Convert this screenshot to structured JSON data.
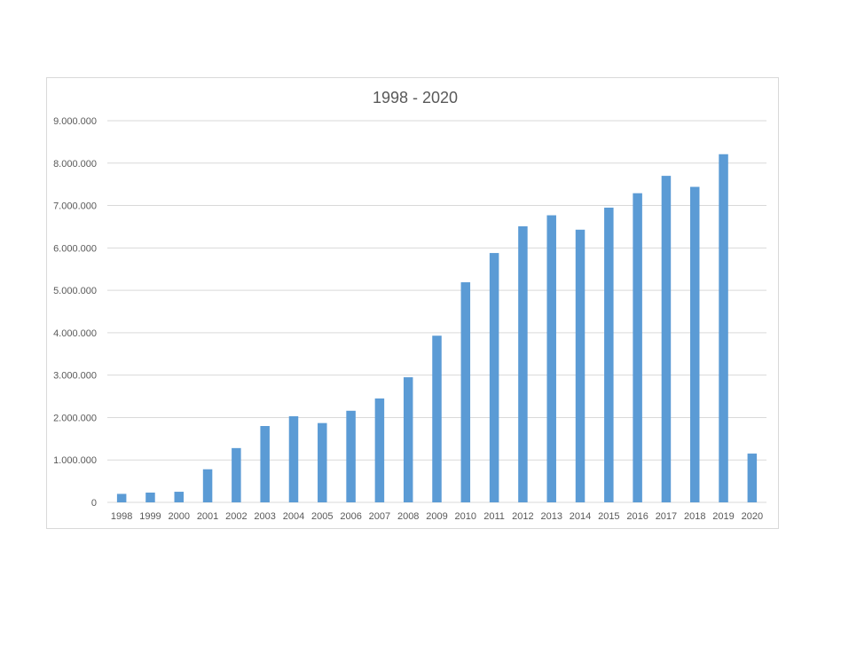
{
  "chart_data": {
    "type": "bar",
    "title": "1998 - 2020",
    "xlabel": "",
    "ylabel": "",
    "categories": [
      "1998",
      "1999",
      "2000",
      "2001",
      "2002",
      "2003",
      "2004",
      "2005",
      "2006",
      "2007",
      "2008",
      "2009",
      "2010",
      "2011",
      "2012",
      "2013",
      "2014",
      "2015",
      "2016",
      "2017",
      "2018",
      "2019",
      "2020"
    ],
    "values": [
      200000,
      230000,
      250000,
      780000,
      1280000,
      1800000,
      2030000,
      1870000,
      2160000,
      2450000,
      2950000,
      3930000,
      5190000,
      5880000,
      6510000,
      6770000,
      6430000,
      6950000,
      7290000,
      7700000,
      7440000,
      8210000,
      1150000
    ],
    "ylim": [
      0,
      9000000
    ],
    "yticks": [
      0,
      1000000,
      2000000,
      3000000,
      4000000,
      5000000,
      6000000,
      7000000,
      8000000,
      9000000
    ],
    "ytick_labels": [
      "0",
      "1.000.000",
      "2.000.000",
      "3.000.000",
      "4.000.000",
      "5.000.000",
      "6.000.000",
      "7.000.000",
      "8.000.000",
      "9.000.000"
    ],
    "grid": true,
    "legend": "none",
    "bar_color": "#5b9bd5"
  }
}
